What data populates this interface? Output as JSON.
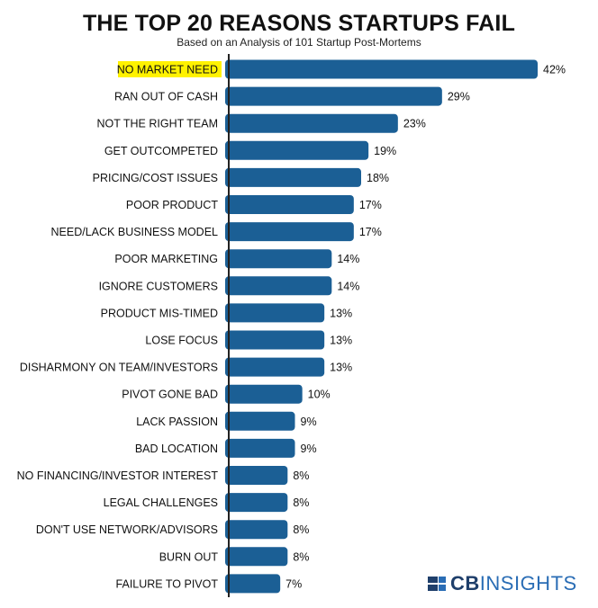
{
  "chart_data": {
    "type": "bar",
    "orientation": "horizontal",
    "title": "THE TOP 20 REASONS STARTUPS FAIL",
    "subtitle": "Based on an Analysis of 101 Startup Post-Mortems",
    "categories": [
      "NO MARKET NEED",
      "RAN OUT OF CASH",
      "NOT THE RIGHT TEAM",
      "GET OUTCOMPETED",
      "PRICING/COST ISSUES",
      "POOR PRODUCT",
      "NEED/LACK BUSINESS MODEL",
      "POOR MARKETING",
      "IGNORE CUSTOMERS",
      "PRODUCT MIS-TIMED",
      "LOSE FOCUS",
      "DISHARMONY ON TEAM/INVESTORS",
      "PIVOT GONE BAD",
      "LACK PASSION",
      "BAD LOCATION",
      "NO FINANCING/INVESTOR INTEREST",
      "LEGAL CHALLENGES",
      "DON'T USE NETWORK/ADVISORS",
      "BURN OUT",
      "FAILURE TO PIVOT"
    ],
    "values": [
      42,
      29,
      23,
      19,
      18,
      17,
      17,
      14,
      14,
      13,
      13,
      13,
      10,
      9,
      9,
      8,
      8,
      8,
      8,
      7
    ],
    "value_labels": [
      "42%",
      "29%",
      "23%",
      "19%",
      "18%",
      "17%",
      "17%",
      "14%",
      "14%",
      "13%",
      "13%",
      "13%",
      "10%",
      "9%",
      "9%",
      "8%",
      "8%",
      "8%",
      "8%",
      "7%"
    ],
    "highlighted_category": "NO MARKET NEED",
    "xlim": [
      0,
      42
    ],
    "grid": false,
    "legend": "none",
    "bar_color": "#1b5f95",
    "highlight_color": "#fff200",
    "axis_color": "#222222"
  },
  "branding": {
    "logo_part1": "CB",
    "logo_part2": "INSIGHTS",
    "logo_icon": "cb-insights-logo-icon",
    "colors": {
      "dark": "#1f3f6b",
      "light": "#2a6db5"
    }
  }
}
